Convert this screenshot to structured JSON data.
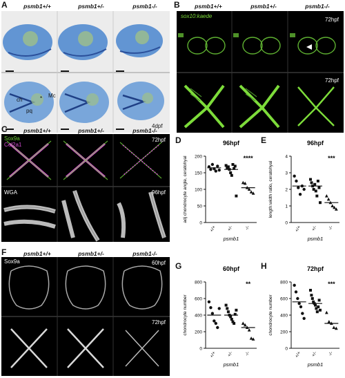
{
  "figure": {
    "panels": {
      "A": {
        "label": "A",
        "genotypes": [
          "psmb1+/+",
          "psmb1+/-",
          "psmb1-/-"
        ],
        "stage": "4dpf",
        "annotations": {
          "ch": "ch",
          "pq": "pq",
          "mc": "Mc",
          "star": "*"
        }
      },
      "B": {
        "label": "B",
        "genotypes": [
          "psmb1+/+",
          "psmb1+/-",
          "psmb1-/-"
        ],
        "reporter": "sox10:kaede",
        "stage_top": "72hpf",
        "stage_bottom": "72hpf"
      },
      "C": {
        "label": "C",
        "genotypes": [
          "psmb1+/+",
          "psmb1+/-",
          "psmb1-/-"
        ],
        "stain1": "Sox9a",
        "stain2": "Col2a1",
        "stage_top": "72hpf",
        "wga": "WGA",
        "stage_bottom": "96hpf"
      },
      "F": {
        "label": "F",
        "genotypes": [
          "psmb1+/+",
          "psmb1+/-",
          "psmb1-/-"
        ],
        "stain": "Sox9a",
        "stage_top": "60hpf",
        "stage_bottom": "72hpf"
      }
    },
    "colors": {
      "green": "#7ddc3a",
      "magenta": "#d24bd2",
      "alcian": "#3a6fc0"
    }
  },
  "chart_data": [
    {
      "panel": "D",
      "type": "scatter",
      "title": "96hpf",
      "ylabel": "adj chondrocyte angle, ceratohyal",
      "xlabel": "psmb1",
      "categories": [
        "+/+",
        "+/-",
        "-/-"
      ],
      "markers": [
        "circle",
        "square",
        "triangle"
      ],
      "yticks": [
        0,
        50,
        100,
        150,
        200
      ],
      "ylim": [
        0,
        200
      ],
      "significance": "****",
      "means": [
        165,
        160,
        105
      ],
      "points": [
        [
          168,
          160,
          175,
          162,
          155,
          170,
          158
        ],
        [
          172,
          165,
          168,
          160,
          150,
          142,
          175,
          163,
          170,
          80
        ],
        [
          120,
          118,
          105,
          100,
          92,
          88
        ]
      ]
    },
    {
      "panel": "E",
      "type": "scatter",
      "title": "96hpf",
      "ylabel": "length:width ratio, ceratohyal",
      "xlabel": "psmb1",
      "categories": [
        "+/+",
        "+/-",
        "-/-"
      ],
      "markers": [
        "circle",
        "square",
        "triangle"
      ],
      "yticks": [
        0,
        1,
        2,
        3,
        4
      ],
      "ylim": [
        0,
        4
      ],
      "significance": "***",
      "means": [
        2.2,
        2.2,
        1.2
      ],
      "points": [
        [
          2.8,
          2.5,
          2.1,
          1.7,
          2.2,
          2.0
        ],
        [
          2.6,
          2.4,
          2.2,
          2.0,
          2.3,
          1.9,
          1.6,
          2.5,
          2.1,
          1.2
        ],
        [
          1.6,
          1.4,
          1.2,
          1.0,
          0.9,
          0.8
        ]
      ]
    },
    {
      "panel": "G",
      "type": "scatter",
      "title": "60hpf",
      "ylabel": "chondrocyte number",
      "xlabel": "psmb1",
      "categories": [
        "+/+",
        "+/-",
        "-/-"
      ],
      "markers": [
        "circle",
        "square",
        "triangle"
      ],
      "yticks": [
        0,
        200,
        400,
        600,
        800
      ],
      "ylim": [
        0,
        800
      ],
      "significance": "**",
      "means": [
        400,
        400,
        250
      ],
      "points": [
        [
          560,
          490,
          420,
          330,
          300,
          250,
          480
        ],
        [
          520,
          480,
          440,
          400,
          380,
          350,
          320,
          300,
          410,
          460
        ],
        [
          300,
          280,
          250,
          220,
          120,
          110
        ]
      ]
    },
    {
      "panel": "H",
      "type": "scatter",
      "title": "72hpf",
      "ylabel": "chondrocyte number",
      "xlabel": "psmb1",
      "categories": [
        "+/+",
        "+/-",
        "-/-"
      ],
      "markers": [
        "circle",
        "square",
        "triangle"
      ],
      "yticks": [
        0,
        200,
        400,
        600,
        800
      ],
      "ylim": [
        0,
        800
      ],
      "significance": "***",
      "means": [
        560,
        540,
        300
      ],
      "points": [
        [
          760,
          680,
          600,
          540,
          500,
          420,
          360
        ],
        [
          700,
          640,
          600,
          560,
          540,
          520,
          480,
          440,
          500,
          580,
          460
        ],
        [
          430,
          320,
          300,
          250,
          240
        ]
      ]
    }
  ]
}
